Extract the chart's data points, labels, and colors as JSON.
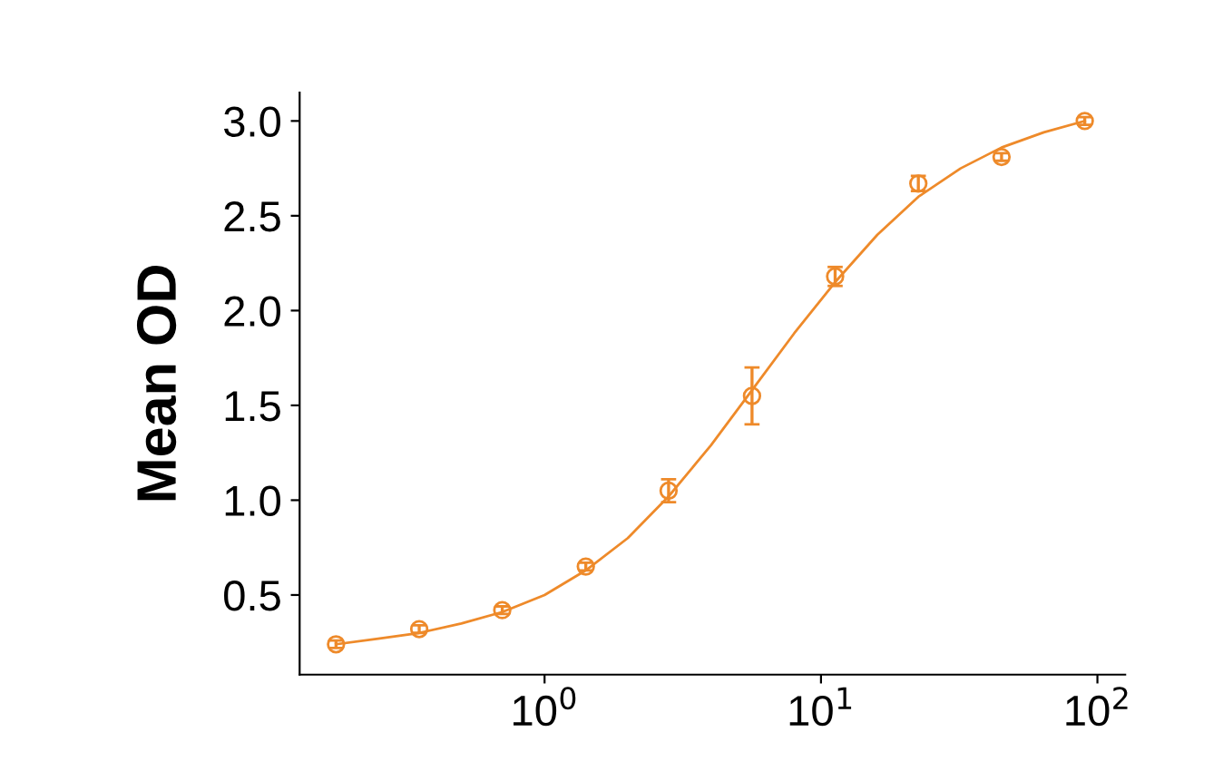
{
  "chart_data": {
    "type": "scatter",
    "ylabel": "Mean OD",
    "log": "x",
    "xlim": [
      0.13,
      126
    ],
    "ylim": [
      0.08,
      3.15
    ],
    "xticks": [
      {
        "value": 1,
        "label": "10$^{0}$"
      },
      {
        "value": 10,
        "label": "10$^{1}$"
      },
      {
        "value": 100,
        "label": "10$^{2}$"
      }
    ],
    "yticks": [
      0.5,
      {
        "value": 1,
        "label": "1.0"
      },
      1.5,
      {
        "value": 2,
        "label": "2.0"
      },
      2.5,
      {
        "value": 3,
        "label": "3.0"
      }
    ],
    "grid": false,
    "series": [
      {
        "color": "#ee8a2a",
        "marker": "circle",
        "x": [
          0.176,
          0.352,
          0.703,
          1.41,
          2.81,
          5.63,
          11.25,
          22.5,
          45,
          90
        ],
        "values": [
          0.24,
          0.32,
          0.42,
          0.65,
          1.05,
          1.55,
          2.18,
          2.67,
          2.81,
          3.0
        ],
        "errors": [
          0.02,
          0.02,
          0.02,
          0.02,
          0.06,
          0.15,
          0.05,
          0.04,
          0.02,
          0.02
        ]
      },
      {
        "type": "line",
        "color": "#ee8a2a",
        "marker": "none",
        "line_style": "solid",
        "x": [
          0.176,
          0.25,
          0.352,
          0.5,
          0.703,
          1,
          1.41,
          2,
          2.81,
          4,
          5.63,
          8,
          11.25,
          16,
          22.5,
          32,
          45,
          64,
          90
        ],
        "values": [
          0.24,
          0.27,
          0.3,
          0.35,
          0.41,
          0.5,
          0.63,
          0.8,
          1.02,
          1.29,
          1.58,
          1.88,
          2.15,
          2.4,
          2.6,
          2.75,
          2.86,
          2.94,
          3.0
        ]
      }
    ]
  }
}
